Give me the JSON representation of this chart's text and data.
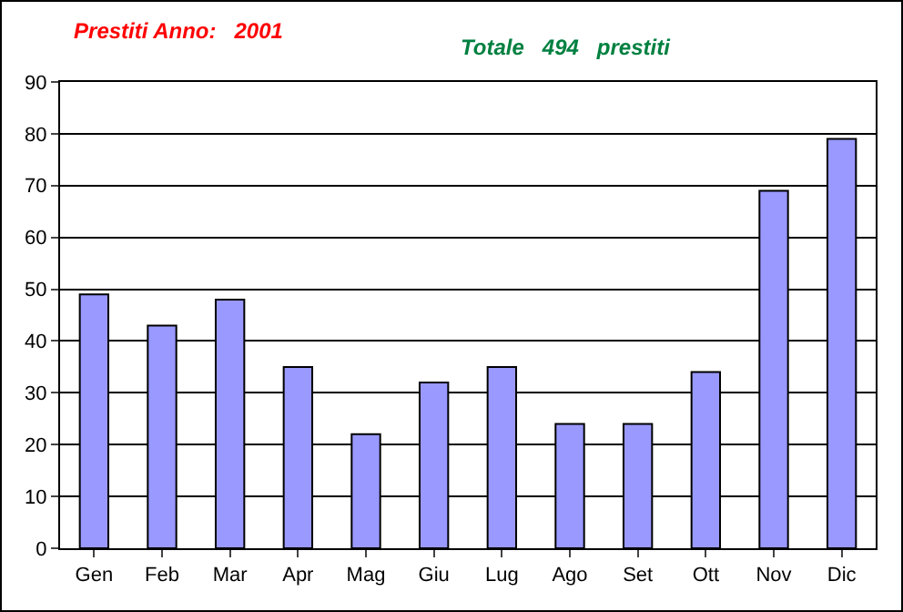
{
  "chart_data": {
    "type": "bar",
    "title": "Prestiti Anno:   2001",
    "subtitle": "Totale   494   prestiti",
    "categories": [
      "Gen",
      "Feb",
      "Mar",
      "Apr",
      "Mag",
      "Giu",
      "Lug",
      "Ago",
      "Set",
      "Ott",
      "Nov",
      "Dic"
    ],
    "values": [
      49,
      43,
      48,
      35,
      22,
      32,
      35,
      24,
      24,
      34,
      69,
      79
    ],
    "color": "#9999ff",
    "ylim": [
      0,
      90
    ],
    "yticks": [
      0,
      10,
      20,
      30,
      40,
      50,
      60,
      70,
      80,
      90
    ],
    "grid": true,
    "legend": false
  }
}
